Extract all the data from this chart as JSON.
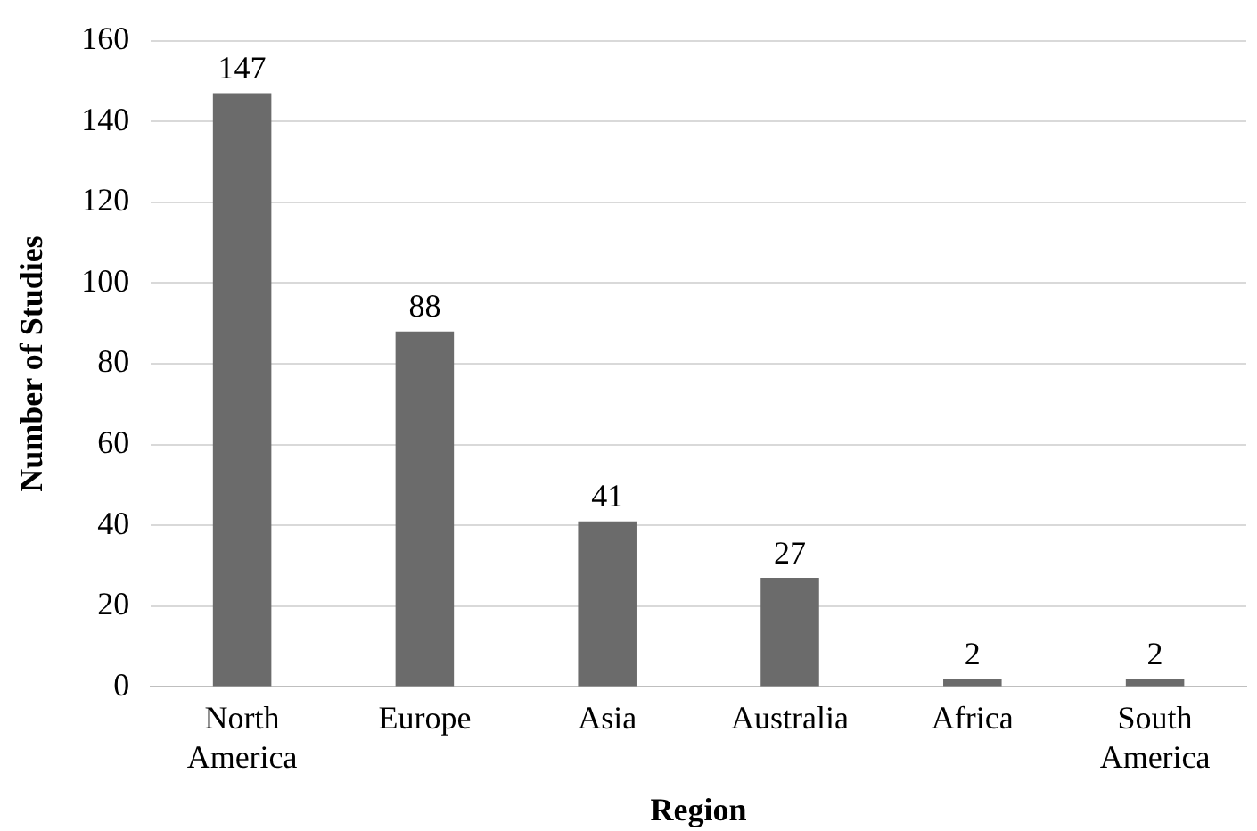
{
  "chart_data": {
    "type": "bar",
    "xlabel": "Region",
    "ylabel": "Number of Studies",
    "categories": [
      "North America",
      "Europe",
      "Asia",
      "Australia",
      "Africa",
      "South America"
    ],
    "values": [
      147,
      88,
      41,
      27,
      2,
      2
    ],
    "color": "#6b6b6b",
    "ylim": [
      0,
      160
    ],
    "yticks": [
      0,
      20,
      40,
      60,
      80,
      100,
      120,
      140,
      160
    ],
    "grid": "y",
    "data_labels": true
  }
}
